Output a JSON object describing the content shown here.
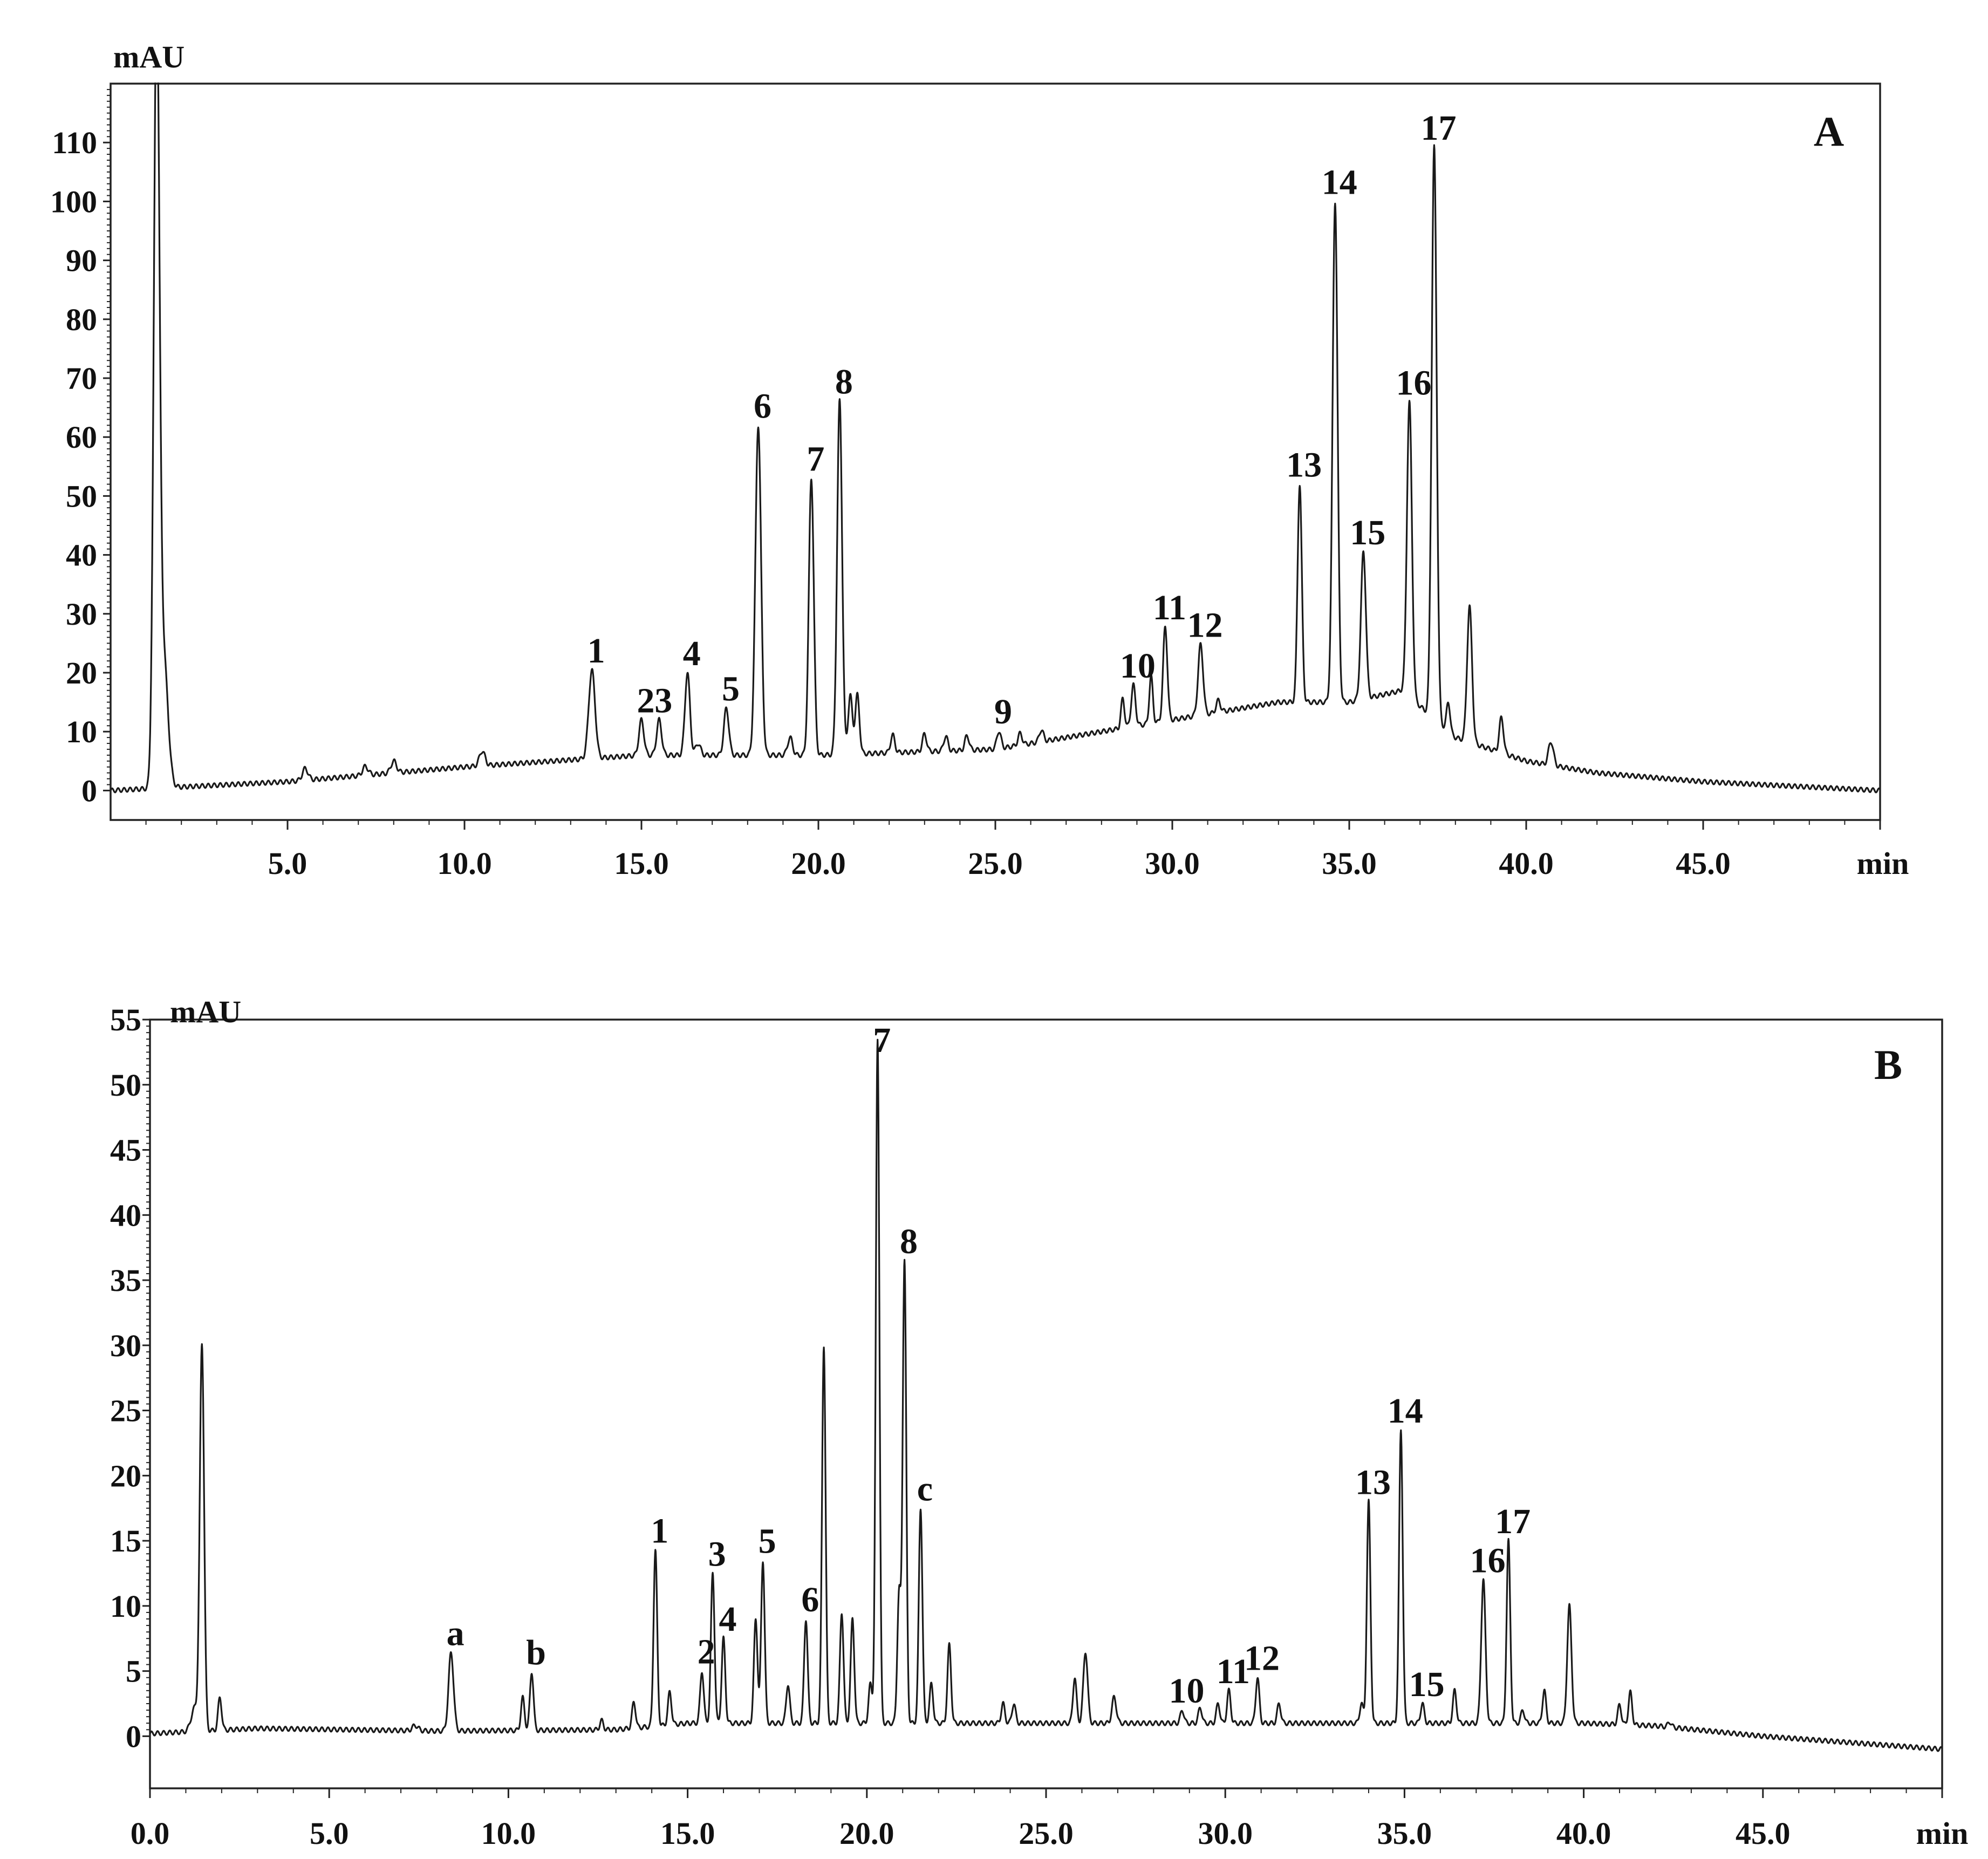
{
  "chart_data": [
    {
      "type": "line",
      "panel_label": "A",
      "ylabel": "mAU",
      "xlabel": "min",
      "xlim": [
        0,
        50
      ],
      "ylim": [
        -5,
        120
      ],
      "yticks": [
        0,
        10,
        20,
        30,
        40,
        50,
        60,
        70,
        80,
        90,
        100,
        110
      ],
      "ytick_labels": [
        "0",
        "10",
        "20",
        "30",
        "40",
        "50",
        "60",
        "70",
        "80",
        "90",
        "100",
        "110"
      ],
      "xticks": [
        5,
        10,
        15,
        20,
        25,
        30,
        35,
        40,
        45
      ],
      "xtick_labels": [
        "5.0",
        "10.0",
        "15.0",
        "20.0",
        "25.0",
        "30.0",
        "35.0",
        "40.0",
        "45.0"
      ],
      "grid": false,
      "baseline": [
        [
          0,
          0
        ],
        [
          5,
          1.5
        ],
        [
          10,
          4
        ],
        [
          15,
          6
        ],
        [
          20,
          6
        ],
        [
          25,
          7
        ],
        [
          28,
          10
        ],
        [
          31,
          13
        ],
        [
          33,
          15
        ],
        [
          35,
          15
        ],
        [
          36.5,
          17
        ],
        [
          38,
          9
        ],
        [
          40,
          5
        ],
        [
          42,
          3
        ],
        [
          45,
          1.5
        ],
        [
          50,
          0
        ]
      ],
      "peaks": [
        {
          "rt": 1.3,
          "height": 130,
          "width": 0.08
        },
        {
          "rt": 1.5,
          "height": 22,
          "width": 0.12
        },
        {
          "rt": 5.5,
          "height": 2,
          "width": 0.08
        },
        {
          "rt": 7.2,
          "height": 1.5,
          "width": 0.08
        },
        {
          "rt": 8.0,
          "height": 2,
          "width": 0.08
        },
        {
          "rt": 10.5,
          "height": 2.5,
          "width": 0.08
        },
        {
          "rt": 13.6,
          "height": 15,
          "width": 0.09,
          "label": "1"
        },
        {
          "rt": 15.0,
          "height": 6,
          "width": 0.07,
          "label": "2"
        },
        {
          "rt": 15.5,
          "height": 6,
          "width": 0.07,
          "label": "3"
        },
        {
          "rt": 16.3,
          "height": 14,
          "width": 0.07,
          "label": "4"
        },
        {
          "rt": 16.6,
          "height": 2,
          "width": 0.07
        },
        {
          "rt": 17.4,
          "height": 8,
          "width": 0.07,
          "label": "5"
        },
        {
          "rt": 18.3,
          "height": 56,
          "width": 0.08,
          "label": "6"
        },
        {
          "rt": 19.2,
          "height": 3,
          "width": 0.07
        },
        {
          "rt": 19.8,
          "height": 47,
          "width": 0.07,
          "label": "7"
        },
        {
          "rt": 20.6,
          "height": 60,
          "width": 0.07,
          "label": "8"
        },
        {
          "rt": 20.9,
          "height": 10,
          "width": 0.06
        },
        {
          "rt": 21.1,
          "height": 10,
          "width": 0.06
        },
        {
          "rt": 22.1,
          "height": 3,
          "width": 0.06
        },
        {
          "rt": 23.0,
          "height": 3,
          "width": 0.06
        },
        {
          "rt": 23.6,
          "height": 2.5,
          "width": 0.06
        },
        {
          "rt": 24.2,
          "height": 2.5,
          "width": 0.06
        },
        {
          "rt": 25.1,
          "height": 3,
          "width": 0.06,
          "label": "9"
        },
        {
          "rt": 25.7,
          "height": 2,
          "width": 0.06
        },
        {
          "rt": 26.3,
          "height": 2,
          "width": 0.06
        },
        {
          "rt": 28.6,
          "height": 5,
          "width": 0.05
        },
        {
          "rt": 28.9,
          "height": 7,
          "width": 0.06,
          "label": "10"
        },
        {
          "rt": 29.4,
          "height": 8,
          "width": 0.05
        },
        {
          "rt": 29.8,
          "height": 16,
          "width": 0.06,
          "label": "11"
        },
        {
          "rt": 30.8,
          "height": 12,
          "width": 0.07,
          "label": "12"
        },
        {
          "rt": 31.3,
          "height": 2,
          "width": 0.06
        },
        {
          "rt": 33.6,
          "height": 37,
          "width": 0.06,
          "label": "13"
        },
        {
          "rt": 34.6,
          "height": 85,
          "width": 0.07,
          "label": "14"
        },
        {
          "rt": 35.4,
          "height": 25,
          "width": 0.07,
          "label": "15"
        },
        {
          "rt": 36.7,
          "height": 50,
          "width": 0.07,
          "label": "16"
        },
        {
          "rt": 37.4,
          "height": 97,
          "width": 0.07,
          "label": "17"
        },
        {
          "rt": 37.8,
          "height": 5,
          "width": 0.05
        },
        {
          "rt": 38.4,
          "height": 23,
          "width": 0.07
        },
        {
          "rt": 39.3,
          "height": 6,
          "width": 0.06
        },
        {
          "rt": 40.7,
          "height": 4,
          "width": 0.07
        }
      ]
    },
    {
      "type": "line",
      "panel_label": "B",
      "ylabel": "mAU",
      "xlabel": "min",
      "xlim": [
        0,
        50
      ],
      "ylim": [
        -4,
        55
      ],
      "yticks": [
        0,
        5,
        10,
        15,
        20,
        25,
        30,
        35,
        40,
        45,
        50,
        55
      ],
      "ytick_labels": [
        "0",
        "5",
        "10",
        "15",
        "20",
        "25",
        "30",
        "35",
        "40",
        "45",
        "50",
        "55"
      ],
      "xticks": [
        0,
        5,
        10,
        15,
        20,
        25,
        30,
        35,
        40,
        45
      ],
      "xtick_labels": [
        "0.0",
        "5.0",
        "10.0",
        "15.0",
        "20.0",
        "25.0",
        "30.0",
        "35.0",
        "40.0",
        "45.0"
      ],
      "grid": false,
      "baseline": [
        [
          0,
          0.2
        ],
        [
          3,
          0.6
        ],
        [
          8,
          0.4
        ],
        [
          13,
          0.5
        ],
        [
          15,
          1.0
        ],
        [
          20,
          1.0
        ],
        [
          25,
          1.0
        ],
        [
          30,
          1.0
        ],
        [
          35,
          1.0
        ],
        [
          40,
          1.0
        ],
        [
          42,
          0.8
        ],
        [
          45,
          0
        ],
        [
          50,
          -1
        ]
      ],
      "peaks": [
        {
          "rt": 1.25,
          "height": 1.8,
          "width": 0.1
        },
        {
          "rt": 1.45,
          "height": 29.5,
          "width": 0.06
        },
        {
          "rt": 1.95,
          "height": 2.5,
          "width": 0.05
        },
        {
          "rt": 7.4,
          "height": 0.4,
          "width": 0.08
        },
        {
          "rt": 8.4,
          "height": 6.0,
          "width": 0.07,
          "label": "a"
        },
        {
          "rt": 10.4,
          "height": 2.5,
          "width": 0.05
        },
        {
          "rt": 10.65,
          "height": 4.5,
          "width": 0.05,
          "label": "b"
        },
        {
          "rt": 12.6,
          "height": 0.7,
          "width": 0.05
        },
        {
          "rt": 13.5,
          "height": 2.0,
          "width": 0.05
        },
        {
          "rt": 14.1,
          "height": 13.5,
          "width": 0.05,
          "label": "1"
        },
        {
          "rt": 14.5,
          "height": 2.5,
          "width": 0.05
        },
        {
          "rt": 15.4,
          "height": 4.0,
          "width": 0.05,
          "label": "2"
        },
        {
          "rt": 15.7,
          "height": 11.5,
          "width": 0.05,
          "label": "3"
        },
        {
          "rt": 16.0,
          "height": 6.5,
          "width": 0.05,
          "label": "4"
        },
        {
          "rt": 16.9,
          "height": 8.0,
          "width": 0.05
        },
        {
          "rt": 17.1,
          "height": 12.5,
          "width": 0.05,
          "label": "5"
        },
        {
          "rt": 17.8,
          "height": 3.0,
          "width": 0.05
        },
        {
          "rt": 18.3,
          "height": 8.0,
          "width": 0.05,
          "label": "6"
        },
        {
          "rt": 18.8,
          "height": 29.0,
          "width": 0.05
        },
        {
          "rt": 19.3,
          "height": 8.5,
          "width": 0.05
        },
        {
          "rt": 19.6,
          "height": 8.0,
          "width": 0.05
        },
        {
          "rt": 20.1,
          "height": 3.0,
          "width": 0.05
        },
        {
          "rt": 20.3,
          "height": 52.5,
          "width": 0.05,
          "label": "7"
        },
        {
          "rt": 20.9,
          "height": 10.0,
          "width": 0.05
        },
        {
          "rt": 21.05,
          "height": 35.5,
          "width": 0.05,
          "label": "8"
        },
        {
          "rt": 21.5,
          "height": 16.5,
          "width": 0.05,
          "label": "c"
        },
        {
          "rt": 21.8,
          "height": 3.0,
          "width": 0.05
        },
        {
          "rt": 22.3,
          "height": 6.0,
          "width": 0.05
        },
        {
          "rt": 23.8,
          "height": 1.5,
          "width": 0.05
        },
        {
          "rt": 24.1,
          "height": 1.5,
          "width": 0.05
        },
        {
          "rt": 25.8,
          "height": 3.5,
          "width": 0.05
        },
        {
          "rt": 26.1,
          "height": 5.5,
          "width": 0.06
        },
        {
          "rt": 26.9,
          "height": 2.0,
          "width": 0.06
        },
        {
          "rt": 28.8,
          "height": 1.0,
          "width": 0.05,
          "label": "10"
        },
        {
          "rt": 29.3,
          "height": 1.2,
          "width": 0.05
        },
        {
          "rt": 29.8,
          "height": 1.5,
          "width": 0.05
        },
        {
          "rt": 30.1,
          "height": 2.5,
          "width": 0.05,
          "label": "11"
        },
        {
          "rt": 30.9,
          "height": 3.5,
          "width": 0.05,
          "label": "12"
        },
        {
          "rt": 31.5,
          "height": 1.5,
          "width": 0.05
        },
        {
          "rt": 33.8,
          "height": 1.5,
          "width": 0.05
        },
        {
          "rt": 34.0,
          "height": 17.0,
          "width": 0.05,
          "label": "13"
        },
        {
          "rt": 34.9,
          "height": 22.5,
          "width": 0.05,
          "label": "14"
        },
        {
          "rt": 35.5,
          "height": 1.5,
          "width": 0.05,
          "label": "15"
        },
        {
          "rt": 36.4,
          "height": 2.5,
          "width": 0.05
        },
        {
          "rt": 37.2,
          "height": 11.0,
          "width": 0.06,
          "label": "16"
        },
        {
          "rt": 37.9,
          "height": 14.0,
          "width": 0.05,
          "label": "17"
        },
        {
          "rt": 38.3,
          "height": 1.0,
          "width": 0.05
        },
        {
          "rt": 38.9,
          "height": 2.5,
          "width": 0.05
        },
        {
          "rt": 39.6,
          "height": 9.0,
          "width": 0.06
        },
        {
          "rt": 41.0,
          "height": 1.5,
          "width": 0.05
        },
        {
          "rt": 41.3,
          "height": 2.5,
          "width": 0.05
        },
        {
          "rt": 42.4,
          "height": 0.4,
          "width": 0.05
        }
      ]
    }
  ]
}
